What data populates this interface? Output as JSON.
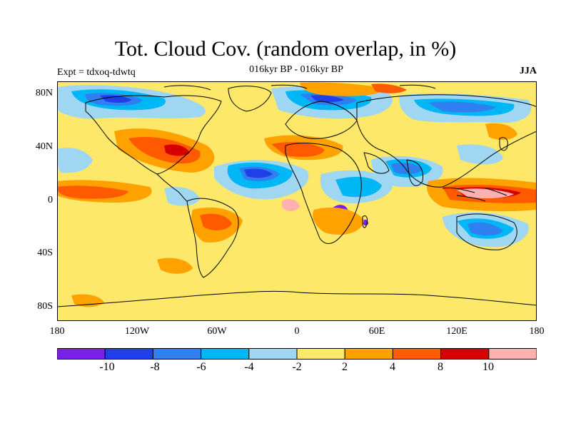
{
  "title": "Tot. Cloud Cov. (random overlap, in %)",
  "subtitle": "016kyr BP - 016kyr BP",
  "experiment": "Expt = tdxoq-tdwtq",
  "season": "JJA",
  "lat_labels": [
    "80N",
    "40N",
    "0",
    "40S",
    "80S"
  ],
  "lon_labels": [
    "180",
    "120W",
    "60W",
    "0",
    "60E",
    "120E",
    "180"
  ],
  "colorbar": {
    "labels": [
      "-10",
      "-8",
      "-6",
      "-4",
      "-2",
      "2",
      "4",
      "8",
      "10"
    ],
    "colors": [
      "#7a1fe8",
      "#1f3fe8",
      "#2f7ff0",
      "#00b7f5",
      "#9fd7f2",
      "#fde86a",
      "#ffa200",
      "#ff5a00",
      "#d60000",
      "#ffb0b0"
    ]
  },
  "colors": {
    "background_field": "#fde86a",
    "coastline": "#000000"
  }
}
